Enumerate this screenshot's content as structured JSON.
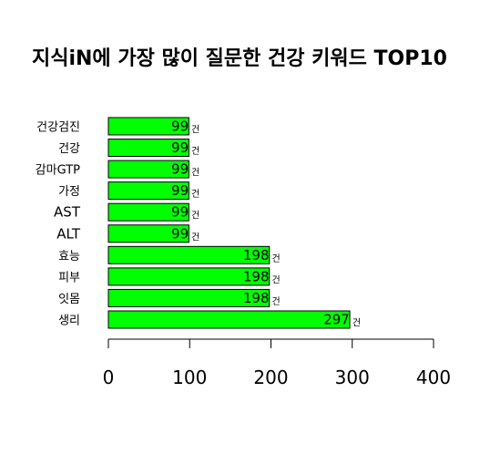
{
  "chart_data": {
    "type": "bar",
    "orientation": "horizontal",
    "title": "지식iN에 가장 많이 질문한 건강 키워드 TOP10",
    "categories": [
      "생리",
      "잇몸",
      "피부",
      "효능",
      "ALT",
      "AST",
      "가정",
      "감마GTP",
      "건강",
      "건강검진"
    ],
    "values": [
      297,
      198,
      198,
      198,
      99,
      99,
      99,
      99,
      99,
      99
    ],
    "value_unit": "건",
    "xlim": [
      0,
      400
    ],
    "xticks": [
      0,
      100,
      200,
      300,
      400
    ],
    "xlabel": "",
    "ylabel": "",
    "grid": false,
    "legend": "none",
    "bar_color": "#00ff00",
    "bar_border_color": "#000000"
  }
}
